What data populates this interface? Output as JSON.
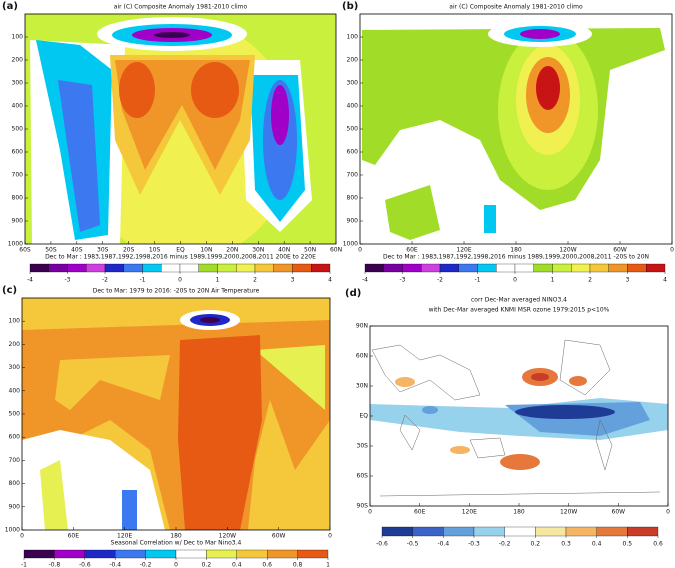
{
  "chart_data": [
    {
      "type": "contour",
      "panel": "(a)",
      "title": "air (C) Composite Anomaly 1981-2010 climo",
      "note": "Dec to Mar : 1983,1987,1992,1998,2016 minus 1989,1999,2000,2008,2011 200E to 220E",
      "xlim": [
        -60,
        60
      ],
      "xticks": [
        {
          "value": -60,
          "label": "60S"
        },
        {
          "value": -50,
          "label": "50S"
        },
        {
          "value": -40,
          "label": "40S"
        },
        {
          "value": -30,
          "label": "30S"
        },
        {
          "value": -20,
          "label": "20S"
        },
        {
          "value": -10,
          "label": "10S"
        },
        {
          "value": 0,
          "label": "EQ"
        },
        {
          "value": 10,
          "label": "10N"
        },
        {
          "value": 20,
          "label": "20N"
        },
        {
          "value": 30,
          "label": "30N"
        },
        {
          "value": 40,
          "label": "40N"
        },
        {
          "value": 50,
          "label": "50N"
        },
        {
          "value": 60,
          "label": "60N"
        }
      ],
      "ylim": [
        1000,
        0
      ],
      "yticks": [
        100,
        200,
        300,
        400,
        500,
        600,
        700,
        800,
        900,
        1000
      ],
      "colorbar": {
        "levels": [
          -4,
          -3,
          -2,
          -1,
          0,
          1,
          2,
          3,
          4
        ],
        "colors": [
          "#3c0050",
          "#7800a0",
          "#a000c8",
          "#d040e0",
          "#1e28c8",
          "#3c78f0",
          "#00c8f0",
          "#ffffff",
          "#ffffff",
          "#a0dc28",
          "#c8f03c",
          "#f0f050",
          "#f5c83c",
          "#f09628",
          "#e65a14",
          "#c81414"
        ]
      }
    },
    {
      "type": "contour",
      "panel": "(b)",
      "title": "air (C) Composite Anomaly 1981-2010 climo",
      "note": "Dec to Mar : 1983,1987,1992,1998,2016 minus 1989,1999,2000,2008,2011 -20S to 20N",
      "xlim": [
        0,
        360
      ],
      "xticks": [
        0,
        {
          "value": 60,
          "label": "60E"
        },
        {
          "value": 120,
          "label": "120E"
        },
        180,
        {
          "value": 240,
          "label": "120W"
        },
        {
          "value": 300,
          "label": "60W"
        },
        {
          "value": 360,
          "label": "0"
        }
      ],
      "ylim": [
        1000,
        0
      ],
      "yticks": [
        100,
        200,
        300,
        400,
        500,
        600,
        700,
        800,
        900,
        1000
      ],
      "colorbar": {
        "levels": [
          -4,
          -3,
          -2,
          -1,
          0,
          1,
          2,
          3,
          4
        ],
        "colors": [
          "#3c0050",
          "#7800a0",
          "#a000c8",
          "#d040e0",
          "#1e28c8",
          "#3c78f0",
          "#00c8f0",
          "#ffffff",
          "#ffffff",
          "#a0dc28",
          "#c8f03c",
          "#f0f050",
          "#f5c83c",
          "#f09628",
          "#e65a14",
          "#c81414"
        ]
      }
    },
    {
      "type": "contour",
      "panel": "(c)",
      "title": "Dec to Mar: 1979 to 2016: -20S to 20N  Air Temperature",
      "note": "Seasonal Correlation w/ Dec to Mar Nino3.4",
      "xlim": [
        0,
        360
      ],
      "xticks": [
        0,
        {
          "value": 60,
          "label": "60E"
        },
        {
          "value": 120,
          "label": "120E"
        },
        180,
        {
          "value": 240,
          "label": "120W"
        },
        {
          "value": 300,
          "label": "60W"
        },
        {
          "value": 360,
          "label": "0"
        }
      ],
      "ylim": [
        1000,
        0
      ],
      "yticks": [
        100,
        200,
        300,
        400,
        500,
        600,
        700,
        800,
        900,
        1000
      ],
      "colorbar": {
        "levels": [
          -1,
          -0.8,
          -0.6,
          -0.4,
          -0.2,
          0,
          0.2,
          0.4,
          0.6,
          0.8,
          1
        ],
        "colors": [
          "#3c0050",
          "#a000c8",
          "#1e28c8",
          "#3c78f0",
          "#00c8f0",
          "#ffffff",
          "#e6f050",
          "#f5c83c",
          "#f09628",
          "#e65a14"
        ]
      }
    },
    {
      "type": "map",
      "panel": "(d)",
      "title": "corr Dec-Mar averaged NINO3.4",
      "subtitle": "with Dec-Mar averaged KNMI MSR ozone 1979:2015 p<10%",
      "xlim": [
        0,
        360
      ],
      "xticks": [
        0,
        {
          "value": 60,
          "label": "60E"
        },
        {
          "value": 120,
          "label": "120E"
        },
        180,
        {
          "value": 240,
          "label": "120W"
        },
        {
          "value": 300,
          "label": "60W"
        },
        {
          "value": 360,
          "label": "0"
        }
      ],
      "ylim": [
        -90,
        90
      ],
      "yticks": [
        {
          "value": -90,
          "label": "90S"
        },
        {
          "value": -60,
          "label": "60S"
        },
        {
          "value": -30,
          "label": "30S"
        },
        {
          "value": 0,
          "label": "EQ"
        },
        {
          "value": 30,
          "label": "30N"
        },
        {
          "value": 60,
          "label": "60N"
        },
        {
          "value": 90,
          "label": "90N"
        }
      ],
      "colorbar": {
        "levels": [
          -0.6,
          -0.5,
          -0.4,
          -0.3,
          -0.2,
          0.2,
          0.3,
          0.4,
          0.5,
          0.6
        ],
        "colors": [
          "#1e3c96",
          "#3c64c8",
          "#64a0dc",
          "#96d2ec",
          "#ffffff",
          "#f5e6a0",
          "#f5b464",
          "#e6783c",
          "#c83c28"
        ]
      }
    }
  ]
}
